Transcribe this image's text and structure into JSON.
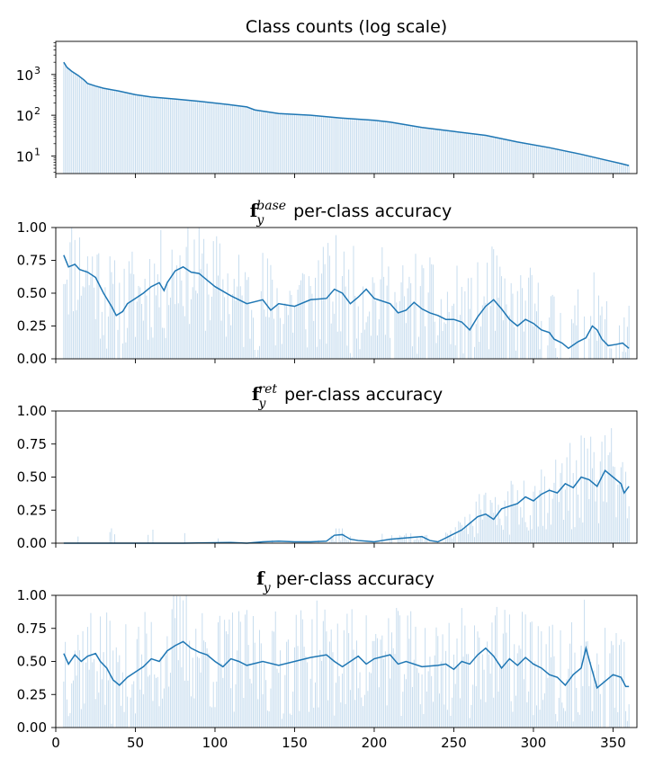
{
  "colors": {
    "line": "#1f77b4",
    "bar": "#c6dcee",
    "axis": "#000000"
  },
  "chart_data": [
    {
      "type": "bar",
      "title": "Class counts (log scale)",
      "xlim": [
        0,
        365
      ],
      "ylim": [
        3.7,
        6500
      ],
      "yscale": "log",
      "yticks": [
        10,
        100,
        1000
      ],
      "ytick_labels": [
        {
          "base": "10",
          "exp": "1"
        },
        {
          "base": "10",
          "exp": "2"
        },
        {
          "base": "10",
          "exp": "3"
        }
      ],
      "xticks": [
        0,
        50,
        100,
        150,
        200,
        250,
        300,
        350
      ],
      "show_xtick_labels": false,
      "n_classes": 360,
      "x_start": 5,
      "line_points": [
        [
          5,
          2000
        ],
        [
          7,
          1500
        ],
        [
          10,
          1200
        ],
        [
          14,
          950
        ],
        [
          18,
          720
        ],
        [
          20,
          600
        ],
        [
          25,
          520
        ],
        [
          30,
          460
        ],
        [
          40,
          390
        ],
        [
          50,
          320
        ],
        [
          60,
          280
        ],
        [
          75,
          250
        ],
        [
          90,
          220
        ],
        [
          110,
          180
        ],
        [
          120,
          160
        ],
        [
          125,
          135
        ],
        [
          140,
          110
        ],
        [
          160,
          100
        ],
        [
          180,
          85
        ],
        [
          200,
          75
        ],
        [
          210,
          68
        ],
        [
          230,
          50
        ],
        [
          250,
          40
        ],
        [
          270,
          32
        ],
        [
          290,
          22
        ],
        [
          310,
          16
        ],
        [
          330,
          11
        ],
        [
          345,
          8
        ],
        [
          355,
          6.5
        ],
        [
          360,
          5.8
        ]
      ]
    },
    {
      "type": "bar",
      "title_symbol": "f",
      "title_sub": "y",
      "title_sup": "base",
      "title_rest": "per-class accuracy",
      "xlim": [
        0,
        365
      ],
      "ylim": [
        0,
        1
      ],
      "yticks": [
        0,
        0.25,
        0.5,
        0.75,
        1.0
      ],
      "ytick_labels": [
        "0.00",
        "0.25",
        "0.50",
        "0.75",
        "1.00"
      ],
      "xticks": [
        0,
        50,
        100,
        150,
        200,
        250,
        300,
        350
      ],
      "show_xtick_labels": false,
      "seed": 11,
      "line_points": [
        [
          5,
          0.79
        ],
        [
          8,
          0.7
        ],
        [
          12,
          0.72
        ],
        [
          15,
          0.68
        ],
        [
          20,
          0.66
        ],
        [
          25,
          0.62
        ],
        [
          30,
          0.5
        ],
        [
          35,
          0.4
        ],
        [
          38,
          0.33
        ],
        [
          42,
          0.36
        ],
        [
          45,
          0.42
        ],
        [
          50,
          0.46
        ],
        [
          55,
          0.5
        ],
        [
          60,
          0.55
        ],
        [
          65,
          0.58
        ],
        [
          68,
          0.52
        ],
        [
          70,
          0.58
        ],
        [
          75,
          0.67
        ],
        [
          80,
          0.7
        ],
        [
          85,
          0.66
        ],
        [
          90,
          0.65
        ],
        [
          95,
          0.6
        ],
        [
          100,
          0.55
        ],
        [
          110,
          0.48
        ],
        [
          120,
          0.42
        ],
        [
          130,
          0.45
        ],
        [
          135,
          0.37
        ],
        [
          140,
          0.42
        ],
        [
          150,
          0.4
        ],
        [
          160,
          0.45
        ],
        [
          170,
          0.46
        ],
        [
          175,
          0.53
        ],
        [
          180,
          0.5
        ],
        [
          185,
          0.42
        ],
        [
          190,
          0.47
        ],
        [
          195,
          0.53
        ],
        [
          200,
          0.46
        ],
        [
          210,
          0.42
        ],
        [
          215,
          0.35
        ],
        [
          220,
          0.37
        ],
        [
          225,
          0.43
        ],
        [
          230,
          0.38
        ],
        [
          235,
          0.35
        ],
        [
          240,
          0.33
        ],
        [
          245,
          0.3
        ],
        [
          250,
          0.3
        ],
        [
          255,
          0.28
        ],
        [
          260,
          0.22
        ],
        [
          265,
          0.32
        ],
        [
          270,
          0.4
        ],
        [
          275,
          0.45
        ],
        [
          280,
          0.38
        ],
        [
          285,
          0.3
        ],
        [
          290,
          0.25
        ],
        [
          295,
          0.3
        ],
        [
          300,
          0.27
        ],
        [
          305,
          0.22
        ],
        [
          310,
          0.2
        ],
        [
          313,
          0.15
        ],
        [
          318,
          0.12
        ],
        [
          322,
          0.08
        ],
        [
          328,
          0.13
        ],
        [
          333,
          0.16
        ],
        [
          337,
          0.25
        ],
        [
          340,
          0.22
        ],
        [
          343,
          0.15
        ],
        [
          347,
          0.1
        ],
        [
          352,
          0.11
        ],
        [
          356,
          0.12
        ],
        [
          358,
          0.1
        ],
        [
          360,
          0.08
        ]
      ]
    },
    {
      "type": "bar",
      "title_symbol": "f",
      "title_sub": "y",
      "title_sup": "ret",
      "title_rest": "per-class accuracy",
      "xlim": [
        0,
        365
      ],
      "ylim": [
        0,
        1
      ],
      "yticks": [
        0,
        0.25,
        0.5,
        0.75,
        1.0
      ],
      "ytick_labels": [
        "0.00",
        "0.25",
        "0.50",
        "0.75",
        "1.00"
      ],
      "xticks": [
        0,
        50,
        100,
        150,
        200,
        250,
        300,
        350
      ],
      "show_xtick_labels": false,
      "seed": 23,
      "line_points": [
        [
          5,
          0.0
        ],
        [
          80,
          0.0
        ],
        [
          110,
          0.005
        ],
        [
          120,
          0.0
        ],
        [
          130,
          0.01
        ],
        [
          140,
          0.015
        ],
        [
          150,
          0.01
        ],
        [
          160,
          0.01
        ],
        [
          170,
          0.015
        ],
        [
          175,
          0.06
        ],
        [
          180,
          0.065
        ],
        [
          185,
          0.03
        ],
        [
          190,
          0.02
        ],
        [
          195,
          0.015
        ],
        [
          200,
          0.01
        ],
        [
          205,
          0.02
        ],
        [
          210,
          0.03
        ],
        [
          220,
          0.04
        ],
        [
          230,
          0.05
        ],
        [
          235,
          0.02
        ],
        [
          240,
          0.01
        ],
        [
          245,
          0.04
        ],
        [
          250,
          0.07
        ],
        [
          255,
          0.1
        ],
        [
          260,
          0.15
        ],
        [
          265,
          0.2
        ],
        [
          270,
          0.22
        ],
        [
          275,
          0.18
        ],
        [
          280,
          0.26
        ],
        [
          285,
          0.28
        ],
        [
          290,
          0.3
        ],
        [
          295,
          0.35
        ],
        [
          300,
          0.32
        ],
        [
          305,
          0.37
        ],
        [
          310,
          0.4
        ],
        [
          315,
          0.38
        ],
        [
          320,
          0.45
        ],
        [
          325,
          0.42
        ],
        [
          330,
          0.5
        ],
        [
          335,
          0.48
        ],
        [
          340,
          0.43
        ],
        [
          345,
          0.55
        ],
        [
          350,
          0.5
        ],
        [
          355,
          0.45
        ],
        [
          357,
          0.38
        ],
        [
          360,
          0.43
        ]
      ]
    },
    {
      "type": "bar",
      "title_symbol": "f",
      "title_sub": "y",
      "title_sup": "",
      "title_rest": "per-class accuracy",
      "xlim": [
        0,
        365
      ],
      "ylim": [
        0,
        1
      ],
      "yticks": [
        0,
        0.25,
        0.5,
        0.75,
        1.0
      ],
      "ytick_labels": [
        "0.00",
        "0.25",
        "0.50",
        "0.75",
        "1.00"
      ],
      "xticks": [
        0,
        50,
        100,
        150,
        200,
        250,
        300,
        350
      ],
      "xtick_labels": [
        "0",
        "50",
        "100",
        "150",
        "200",
        "250",
        "300",
        "350"
      ],
      "show_xtick_labels": true,
      "seed": 37,
      "line_points": [
        [
          5,
          0.56
        ],
        [
          8,
          0.48
        ],
        [
          12,
          0.55
        ],
        [
          16,
          0.5
        ],
        [
          20,
          0.54
        ],
        [
          25,
          0.56
        ],
        [
          28,
          0.5
        ],
        [
          32,
          0.45
        ],
        [
          36,
          0.36
        ],
        [
          40,
          0.32
        ],
        [
          45,
          0.38
        ],
        [
          50,
          0.42
        ],
        [
          55,
          0.46
        ],
        [
          60,
          0.52
        ],
        [
          65,
          0.5
        ],
        [
          70,
          0.58
        ],
        [
          75,
          0.62
        ],
        [
          80,
          0.65
        ],
        [
          85,
          0.6
        ],
        [
          90,
          0.57
        ],
        [
          95,
          0.55
        ],
        [
          100,
          0.5
        ],
        [
          105,
          0.46
        ],
        [
          110,
          0.52
        ],
        [
          115,
          0.5
        ],
        [
          120,
          0.47
        ],
        [
          130,
          0.5
        ],
        [
          140,
          0.47
        ],
        [
          150,
          0.5
        ],
        [
          160,
          0.53
        ],
        [
          170,
          0.55
        ],
        [
          175,
          0.5
        ],
        [
          180,
          0.46
        ],
        [
          185,
          0.5
        ],
        [
          190,
          0.54
        ],
        [
          195,
          0.48
        ],
        [
          200,
          0.52
        ],
        [
          210,
          0.55
        ],
        [
          215,
          0.48
        ],
        [
          220,
          0.5
        ],
        [
          230,
          0.46
        ],
        [
          240,
          0.47
        ],
        [
          245,
          0.48
        ],
        [
          250,
          0.44
        ],
        [
          255,
          0.5
        ],
        [
          260,
          0.48
        ],
        [
          265,
          0.55
        ],
        [
          270,
          0.6
        ],
        [
          275,
          0.54
        ],
        [
          280,
          0.45
        ],
        [
          285,
          0.52
        ],
        [
          290,
          0.47
        ],
        [
          295,
          0.53
        ],
        [
          300,
          0.48
        ],
        [
          305,
          0.45
        ],
        [
          310,
          0.4
        ],
        [
          315,
          0.38
        ],
        [
          320,
          0.32
        ],
        [
          325,
          0.4
        ],
        [
          330,
          0.45
        ],
        [
          333,
          0.6
        ],
        [
          336,
          0.47
        ],
        [
          340,
          0.3
        ],
        [
          345,
          0.35
        ],
        [
          350,
          0.4
        ],
        [
          355,
          0.38
        ],
        [
          358,
          0.31
        ],
        [
          360,
          0.31
        ]
      ]
    }
  ]
}
